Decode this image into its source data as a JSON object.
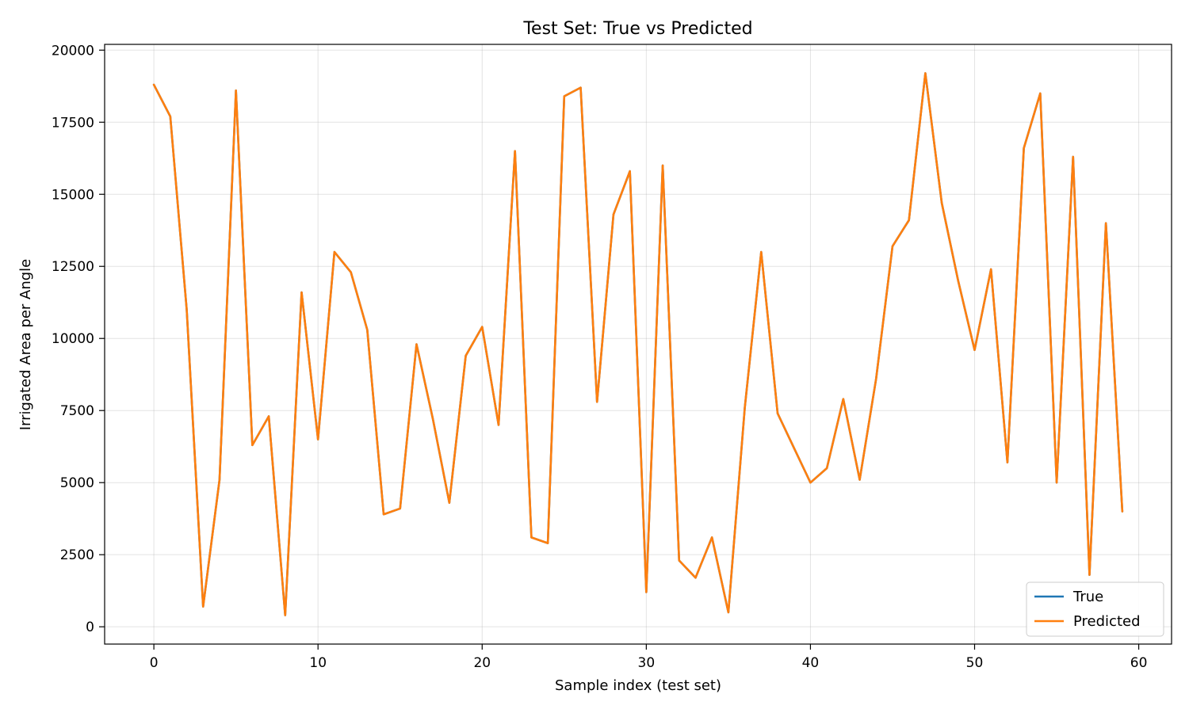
{
  "chart_data": {
    "type": "line",
    "title": "Test Set: True vs Predicted",
    "xlabel": "Sample index (test set)",
    "ylabel": "Irrigated Area per Angle",
    "xlim": [
      -3,
      62
    ],
    "ylim": [
      -600,
      20200
    ],
    "xticks": [
      0,
      10,
      20,
      30,
      40,
      50,
      60
    ],
    "yticks": [
      0,
      2500,
      5000,
      7500,
      10000,
      12500,
      15000,
      17500,
      20000
    ],
    "grid": true,
    "legend_position": "lower-right",
    "x": [
      0,
      1,
      2,
      3,
      4,
      5,
      6,
      7,
      8,
      9,
      10,
      11,
      12,
      13,
      14,
      15,
      16,
      17,
      18,
      19,
      20,
      21,
      22,
      23,
      24,
      25,
      26,
      27,
      28,
      29,
      30,
      31,
      32,
      33,
      34,
      35,
      36,
      37,
      38,
      39,
      40,
      41,
      42,
      43,
      44,
      45,
      46,
      47,
      48,
      49,
      50,
      51,
      52,
      53,
      54,
      55,
      56,
      57,
      58,
      59
    ],
    "series": [
      {
        "name": "True",
        "color": "#1f77b4",
        "values": [
          18800,
          17700,
          11000,
          700,
          5100,
          18600,
          6300,
          7300,
          400,
          11600,
          6500,
          13000,
          12300,
          10300,
          3900,
          4100,
          9800,
          7200,
          4300,
          9400,
          10400,
          7000,
          16500,
          3100,
          2900,
          18400,
          18700,
          7800,
          14300,
          15800,
          1200,
          16000,
          2300,
          1700,
          3100,
          500,
          7600,
          13000,
          7400,
          6200,
          5000,
          5500,
          7900,
          5100,
          8600,
          13200,
          14100,
          19200,
          14700,
          12000,
          9600,
          12400,
          5700,
          16600,
          18500,
          5000,
          16300,
          1800,
          14000,
          4000
        ]
      },
      {
        "name": "Predicted",
        "color": "#ff7f0e",
        "values": [
          18800,
          17700,
          11000,
          700,
          5100,
          18600,
          6300,
          7300,
          400,
          11600,
          6500,
          13000,
          12300,
          10300,
          3900,
          4100,
          9800,
          7200,
          4300,
          9400,
          10400,
          7000,
          16500,
          3100,
          2900,
          18400,
          18700,
          7800,
          14300,
          15800,
          1200,
          16000,
          2300,
          1700,
          3100,
          500,
          7600,
          13000,
          7400,
          6200,
          5000,
          5500,
          7900,
          5100,
          8600,
          13200,
          14100,
          19200,
          14700,
          12000,
          9600,
          12400,
          5700,
          16600,
          18500,
          5000,
          16300,
          1800,
          14000,
          4000
        ]
      }
    ]
  }
}
